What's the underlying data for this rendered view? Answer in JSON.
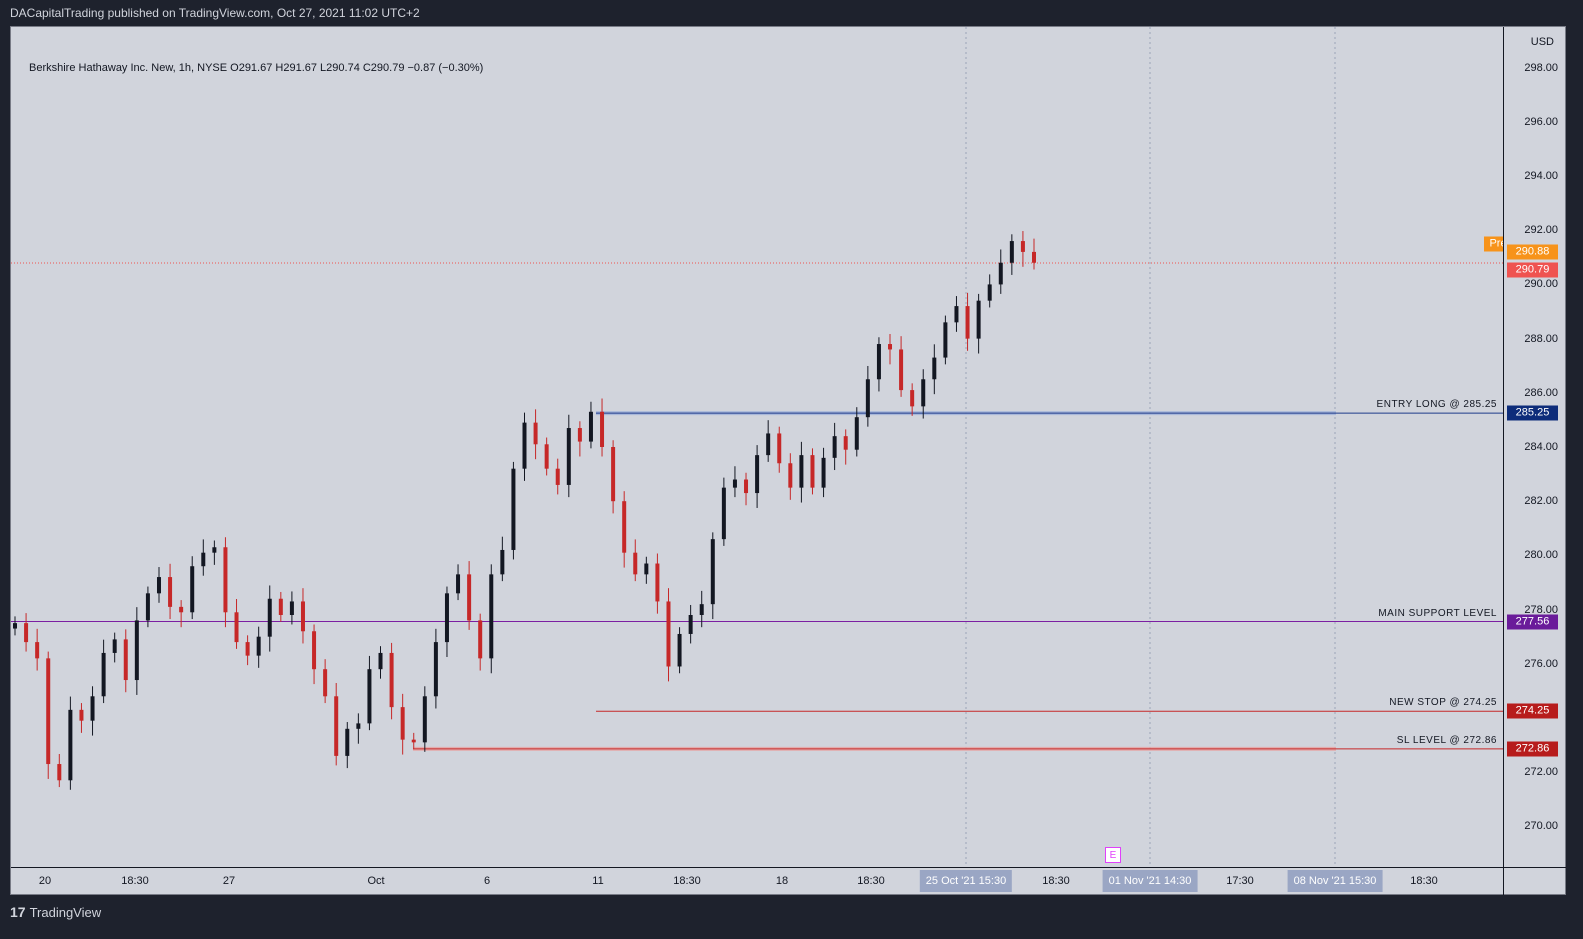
{
  "header": {
    "publisher": "DACapitalTrading published on TradingView.com, Oct 27, 2021 11:02 UTC+2"
  },
  "legend": {
    "text": "Berkshire Hathaway Inc. New, 1h, NYSE  O291.67  H291.67  L290.74  C290.79  −0.87 (−0.30%)"
  },
  "price_axis": {
    "currency": "USD",
    "ticks": [
      "298.00",
      "296.00",
      "294.00",
      "292.00",
      "290.00",
      "288.00",
      "286.00",
      "284.00",
      "282.00",
      "280.00",
      "278.00",
      "276.00",
      "272.00",
      "270.00"
    ]
  },
  "time_axis": {
    "ticks": [
      "20",
      "18:30",
      "27",
      "Oct",
      "6",
      "11",
      "18:30",
      "18",
      "18:30",
      "18:30",
      "17:30",
      "18:30"
    ],
    "highlights": [
      "25 Oct '21   15:30",
      "01 Nov '21   14:30",
      "08 Nov '21   15:30"
    ]
  },
  "price_labels": {
    "pre_tag": "Pre",
    "pre_value": "290.88",
    "last_value": "290.79",
    "entry_value": "285.25",
    "support_value": "277.56",
    "newstop_value": "274.25",
    "sl_value": "272.86"
  },
  "levels": {
    "entry": "ENTRY LONG @ 285.25",
    "support": "MAIN SUPPORT LEVEL",
    "newstop": "NEW STOP @ 274.25",
    "sl": "SL LEVEL @ 272.86"
  },
  "earnings_marker": "E",
  "footer": {
    "brand": "TradingView",
    "logo_glyph": "17"
  },
  "colors": {
    "bg_chart": "#d1d4dc",
    "up": "#131722",
    "down": "#c62828",
    "entry": "#1e3a8a",
    "support": "#7b1fa2",
    "stop": "#c62828",
    "pre": "#f7931a",
    "last": "#ef5350"
  },
  "chart_data": {
    "type": "candlestick",
    "title": "Berkshire Hathaway Inc. New, 1h, NYSE",
    "ylim": [
      268.5,
      299.5
    ],
    "horizontal_levels": [
      {
        "name": "ENTRY LONG @ 285.25",
        "value": 285.25
      },
      {
        "name": "MAIN SUPPORT LEVEL",
        "value": 277.56
      },
      {
        "name": "NEW STOP @ 274.25",
        "value": 274.25
      },
      {
        "name": "SL LEVEL @ 272.86",
        "value": 272.86
      }
    ],
    "last_price": 290.79,
    "pre_price": 290.88,
    "close_path": [
      277.5,
      276.8,
      276.2,
      272.3,
      271.7,
      274.3,
      273.9,
      274.8,
      276.4,
      276.9,
      275.4,
      277.6,
      278.6,
      279.2,
      278.1,
      277.9,
      279.6,
      280.1,
      280.3,
      277.9,
      276.8,
      276.3,
      277.0,
      278.4,
      277.8,
      278.3,
      277.2,
      275.8,
      274.8,
      272.6,
      273.6,
      273.8,
      275.8,
      276.4,
      274.4,
      273.2,
      273.1,
      274.8,
      276.8,
      278.6,
      279.3,
      277.6,
      276.2,
      279.3,
      280.2,
      283.2,
      284.9,
      284.1,
      283.2,
      282.6,
      284.7,
      284.2,
      285.3,
      284.0,
      282.0,
      280.1,
      279.3,
      279.7,
      278.3,
      275.9,
      277.1,
      277.8,
      278.2,
      280.6,
      282.5,
      282.8,
      282.3,
      283.7,
      284.5,
      283.4,
      282.5,
      283.7,
      282.5,
      283.6,
      284.4,
      283.9,
      285.1,
      286.5,
      287.8,
      287.6,
      286.1,
      285.5,
      286.5,
      287.3,
      288.6,
      289.2,
      288.0,
      289.4,
      290.0,
      290.8,
      291.6,
      291.2,
      290.8
    ]
  }
}
